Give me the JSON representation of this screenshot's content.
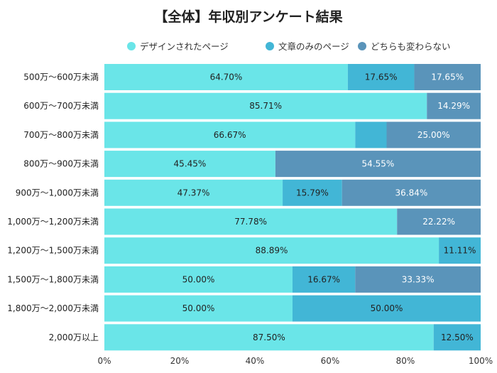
{
  "chart_data": {
    "type": "bar",
    "orientation": "horizontal",
    "stacked": "percent",
    "title": "【全体】年収別アンケート結果",
    "legend_position": "top",
    "categories": [
      "500万～600万未満",
      "600万～700万未満",
      "700万～800万未満",
      "800万～900万未満",
      "900万～1,000万未満",
      "1,000万～1,200万未満",
      "1,200万～1,500万未満",
      "1,500万～1,800万未満",
      "1,800万～2,000万未満",
      "2,000万以上"
    ],
    "series": [
      {
        "name": "デザインされたページ",
        "color": "#6ae5e8",
        "label_color": "#222222",
        "values": [
          64.7,
          85.71,
          66.67,
          45.45,
          47.37,
          77.78,
          88.89,
          50.0,
          50.0,
          87.5
        ],
        "labels": [
          "64.70%",
          "85.71%",
          "66.67%",
          "45.45%",
          "47.37%",
          "77.78%",
          "88.89%",
          "50.00%",
          "50.00%",
          "87.50%"
        ]
      },
      {
        "name": "文章のみのページ",
        "color": "#42b6d6",
        "label_color": "#222222",
        "values": [
          17.65,
          0,
          8.33,
          0,
          15.79,
          0,
          11.11,
          16.67,
          50.0,
          12.5
        ],
        "labels": [
          "17.65%",
          "",
          "",
          "",
          "15.79%",
          "",
          "11.11%",
          "16.67%",
          "50.00%",
          "12.50%"
        ]
      },
      {
        "name": "どちらも変わらない",
        "color": "#5a94ba",
        "label_color": "#ffffff",
        "values": [
          17.65,
          14.29,
          25.0,
          54.55,
          36.84,
          22.22,
          0,
          33.33,
          0,
          0
        ],
        "labels": [
          "17.65%",
          "14.29%",
          "25.00%",
          "54.55%",
          "36.84%",
          "22.22%",
          "",
          "33.33%",
          "",
          ""
        ]
      }
    ],
    "xlim": [
      0,
      100
    ],
    "xticks": [
      "0%",
      "20%",
      "40%",
      "60%",
      "80%",
      "100%"
    ],
    "grid": false
  }
}
